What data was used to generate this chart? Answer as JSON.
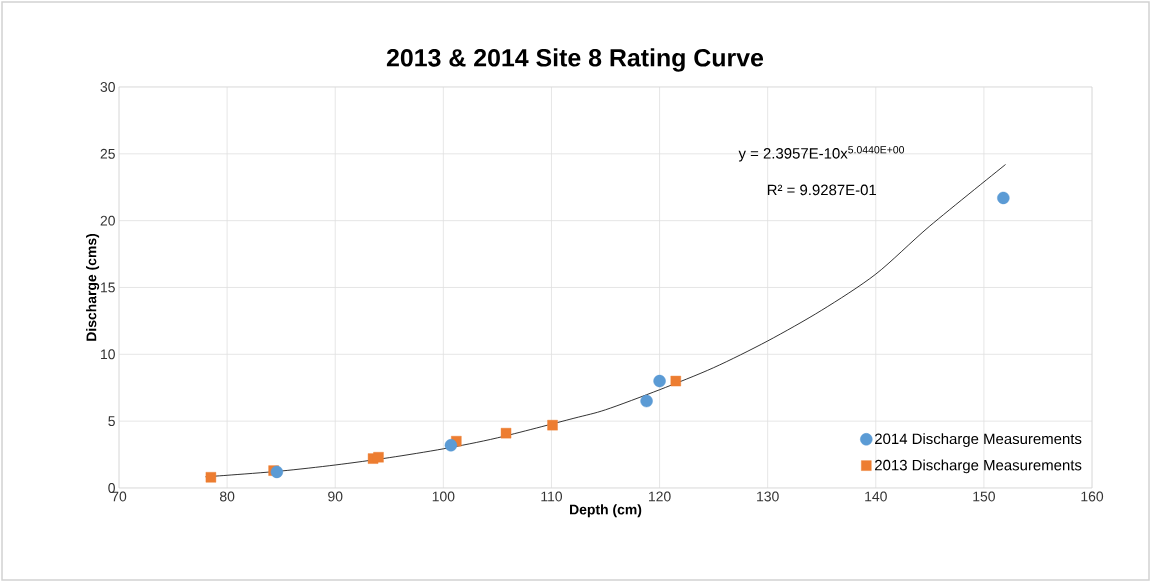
{
  "chart_data": {
    "type": "scatter",
    "title": "2013 & 2014 Site 8 Rating Curve",
    "xlabel": "Depth (cm)",
    "ylabel": "Discharge (cms)",
    "xlim": [
      70,
      160
    ],
    "xticks": [
      70,
      80,
      90,
      100,
      110,
      120,
      130,
      140,
      150,
      160
    ],
    "ylim": [
      0,
      30
    ],
    "yticks": [
      0,
      5,
      10,
      15,
      20,
      25,
      30
    ],
    "grid": true,
    "legend": "bottom right",
    "annotations": [
      "y = 2.3957E-10x$^{5.0440E+00}$",
      "R² = 9.9287E-01"
    ],
    "series": [
      {
        "name": "2014 Discharge Measurements",
        "color": "#5b9bd5",
        "marker": "circle",
        "x": [
          84.6,
          100.7,
          118.8,
          120.0,
          151.8
        ],
        "values": [
          1.2,
          3.2,
          6.5,
          8.0,
          21.7
        ]
      },
      {
        "name": "2013 Discharge Measurements",
        "color": "#ed7d31",
        "marker": "square",
        "x": [
          78.5,
          84.3,
          93.5,
          94.0,
          101.2,
          105.8,
          110.1,
          121.5
        ],
        "values": [
          0.8,
          1.3,
          2.2,
          2.3,
          3.5,
          4.1,
          4.7,
          8.0
        ]
      },
      {
        "type": "line",
        "color": "#000000",
        "marker": "none",
        "x": [
          78,
          80,
          85,
          90,
          95,
          100,
          105,
          112,
          115,
          120,
          125,
          130,
          135,
          140,
          145,
          152
        ],
        "values": [
          0.84,
          0.95,
          1.27,
          1.72,
          2.27,
          2.93,
          3.75,
          5.2,
          5.85,
          7.35,
          9.0,
          11.0,
          13.3,
          16.0,
          19.6,
          24.2
        ]
      }
    ]
  }
}
